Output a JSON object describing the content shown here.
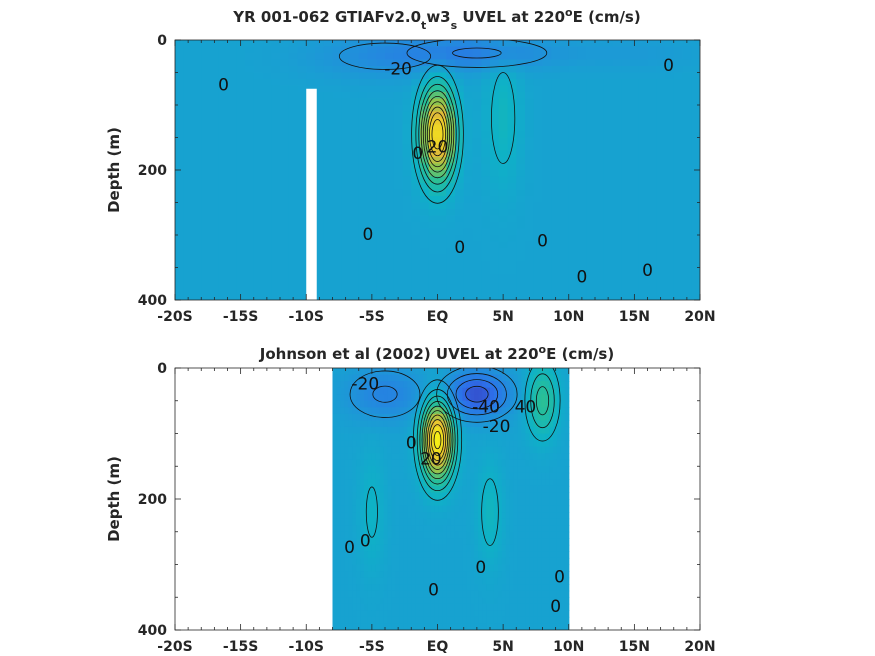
{
  "chart_data": [
    {
      "type": "heatmap",
      "title_prefix": "YR 001-062 GTIAFv2.0",
      "title_sub1": "t",
      "title_mid": "w3",
      "title_sub2": "s",
      "title_rest1": " UVEL at 220",
      "title_sup": "o",
      "title_rest2": "E (cm/s)",
      "ylabel": "Depth (m)",
      "xticks": [
        "-20S",
        "-15S",
        "-10S",
        "-5S",
        "EQ",
        "5N",
        "10N",
        "15N",
        "20N"
      ],
      "yticks": [
        "0",
        "200",
        "400"
      ],
      "xlim": [
        -20,
        20
      ],
      "ylim": [
        0,
        400
      ],
      "y_reversed": true,
      "blobs": [
        {
          "lat": 0.0,
          "depth": 145,
          "value": 100,
          "wlat": 1.3,
          "wdep": 70
        },
        {
          "lat": 5.0,
          "depth": 120,
          "value": 15,
          "wlat": 1.4,
          "wdep": 110
        },
        {
          "lat": 3.0,
          "depth": 20,
          "value": -22,
          "wlat": 6,
          "wdep": 25
        },
        {
          "lat": -4.0,
          "depth": 25,
          "value": -14,
          "wlat": 6,
          "wdep": 35
        },
        {
          "lat": 15.0,
          "depth": 20,
          "value": -6,
          "wlat": 5,
          "wdep": 25
        }
      ],
      "contour_labels": [
        {
          "text": "0",
          "lat": -16.3,
          "depth": 70
        },
        {
          "text": "-20",
          "lat": -3.0,
          "depth": 45
        },
        {
          "text": "0",
          "lat": 17.6,
          "depth": 40
        },
        {
          "text": "0",
          "lat": -5.3,
          "depth": 300
        },
        {
          "text": "0",
          "lat": 1.7,
          "depth": 320
        },
        {
          "text": "0",
          "lat": 8.0,
          "depth": 310
        },
        {
          "text": "0",
          "lat": 11.0,
          "depth": 365
        },
        {
          "text": "0",
          "lat": 16.0,
          "depth": 355
        },
        {
          "text": "0",
          "lat": -1.5,
          "depth": 175
        },
        {
          "text": "20",
          "lat": 0.0,
          "depth": 165
        }
      ],
      "missing_columns": [
        {
          "lat_from": -10.0,
          "lat_to": -9.2,
          "depth_from": 75,
          "depth_to": 400
        }
      ]
    },
    {
      "type": "heatmap",
      "title_prefix": "Johnson et al (2002) UVEL at 220",
      "title_sup": "o",
      "title_rest2": "E (cm/s)",
      "ylabel": "Depth (m)",
      "xticks": [
        "-20S",
        "-15S",
        "-10S",
        "-5S",
        "EQ",
        "5N",
        "10N",
        "15N",
        "20N"
      ],
      "yticks": [
        "0",
        "200",
        "400"
      ],
      "xlim": [
        -20,
        20
      ],
      "ylim": [
        0,
        400
      ],
      "y_reversed": true,
      "data_lat_range": [
        -8,
        10
      ],
      "blobs": [
        {
          "lat": 0.0,
          "depth": 110,
          "value": 105,
          "wlat": 1.2,
          "wdep": 60
        },
        {
          "lat": 3.0,
          "depth": 40,
          "value": -45,
          "wlat": 2.5,
          "wdep": 35
        },
        {
          "lat": -4.0,
          "depth": 40,
          "value": -22,
          "wlat": 3,
          "wdep": 40
        },
        {
          "lat": 8.0,
          "depth": 50,
          "value": 35,
          "wlat": 1.2,
          "wdep": 55
        },
        {
          "lat": 4.0,
          "depth": 220,
          "value": 15,
          "wlat": 1.0,
          "wdep": 80
        },
        {
          "lat": -5.0,
          "depth": 220,
          "value": 12,
          "wlat": 1.0,
          "wdep": 90
        }
      ],
      "contour_labels": [
        {
          "text": "-20",
          "lat": -5.5,
          "depth": 25
        },
        {
          "text": "-40",
          "lat": 3.7,
          "depth": 60
        },
        {
          "text": "-20",
          "lat": 4.5,
          "depth": 90
        },
        {
          "text": "40",
          "lat": 6.7,
          "depth": 60
        },
        {
          "text": "0",
          "lat": -2.0,
          "depth": 115
        },
        {
          "text": "20",
          "lat": -0.5,
          "depth": 140
        },
        {
          "text": "0",
          "lat": -6.7,
          "depth": 275
        },
        {
          "text": "0",
          "lat": -5.5,
          "depth": 265
        },
        {
          "text": "0",
          "lat": 3.3,
          "depth": 305
        },
        {
          "text": "0",
          "lat": -0.3,
          "depth": 340
        },
        {
          "text": "0",
          "lat": 9.3,
          "depth": 320
        },
        {
          "text": "0",
          "lat": 9.0,
          "depth": 365
        }
      ]
    }
  ]
}
